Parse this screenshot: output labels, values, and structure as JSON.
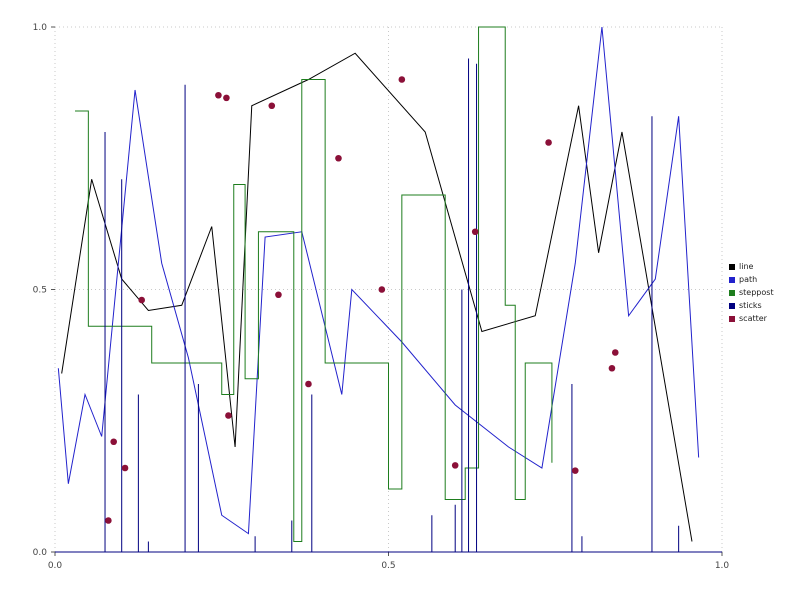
{
  "chart_data": {
    "type": "mixed",
    "title": "",
    "xlabel": "",
    "ylabel": "",
    "xlim": [
      0,
      1
    ],
    "ylim": [
      0,
      1
    ],
    "xticks": {
      "values": [
        0,
        0.5,
        1
      ],
      "labels": [
        "0.0",
        "0.5",
        "1.0"
      ]
    },
    "yticks": {
      "values": [
        0,
        0.5,
        1
      ],
      "labels": [
        "0.0",
        "0.5",
        "1.0"
      ]
    },
    "grid": {
      "on": true,
      "style": "dotted",
      "color": "#c9c9c9"
    },
    "series": [
      {
        "name": "line",
        "type": "line",
        "color": "#000000",
        "points": [
          [
            0.01,
            0.34
          ],
          [
            0.055,
            0.71
          ],
          [
            0.1,
            0.52
          ],
          [
            0.14,
            0.46
          ],
          [
            0.19,
            0.47
          ],
          [
            0.235,
            0.62
          ],
          [
            0.27,
            0.2
          ],
          [
            0.295,
            0.85
          ],
          [
            0.38,
            0.9
          ],
          [
            0.45,
            0.95
          ],
          [
            0.555,
            0.8
          ],
          [
            0.64,
            0.42
          ],
          [
            0.72,
            0.45
          ],
          [
            0.785,
            0.85
          ],
          [
            0.815,
            0.57
          ],
          [
            0.85,
            0.8
          ],
          [
            0.955,
            0.02
          ]
        ]
      },
      {
        "name": "path",
        "type": "line",
        "color": "#2222cc",
        "points": [
          [
            0.005,
            0.35
          ],
          [
            0.02,
            0.13
          ],
          [
            0.045,
            0.3
          ],
          [
            0.07,
            0.22
          ],
          [
            0.12,
            0.88
          ],
          [
            0.16,
            0.55
          ],
          [
            0.2,
            0.37
          ],
          [
            0.25,
            0.07
          ],
          [
            0.29,
            0.035
          ],
          [
            0.315,
            0.6
          ],
          [
            0.37,
            0.61
          ],
          [
            0.43,
            0.3
          ],
          [
            0.445,
            0.5
          ],
          [
            0.52,
            0.4
          ],
          [
            0.6,
            0.28
          ],
          [
            0.68,
            0.2
          ],
          [
            0.73,
            0.16
          ],
          [
            0.78,
            0.55
          ],
          [
            0.82,
            1.0
          ],
          [
            0.86,
            0.45
          ],
          [
            0.9,
            0.52
          ],
          [
            0.935,
            0.83
          ],
          [
            0.965,
            0.18
          ]
        ]
      },
      {
        "name": "steppost",
        "type": "step-post",
        "color": "#1e7d1e",
        "points": [
          [
            0.03,
            0.84
          ],
          [
            0.05,
            0.43
          ],
          [
            0.145,
            0.36
          ],
          [
            0.25,
            0.3
          ],
          [
            0.268,
            0.7
          ],
          [
            0.285,
            0.33
          ],
          [
            0.305,
            0.61
          ],
          [
            0.358,
            0.02
          ],
          [
            0.37,
            0.9
          ],
          [
            0.405,
            0.36
          ],
          [
            0.5,
            0.12
          ],
          [
            0.52,
            0.68
          ],
          [
            0.585,
            0.1
          ],
          [
            0.615,
            0.16
          ],
          [
            0.635,
            1.0
          ],
          [
            0.675,
            0.47
          ],
          [
            0.69,
            0.1
          ],
          [
            0.705,
            0.36
          ],
          [
            0.745,
            0.17
          ]
        ]
      },
      {
        "name": "sticks",
        "type": "stem",
        "color": "#000080",
        "baseline": 0,
        "points": [
          [
            0.075,
            0.8
          ],
          [
            0.1,
            0.71
          ],
          [
            0.125,
            0.3
          ],
          [
            0.14,
            0.02
          ],
          [
            0.195,
            0.89
          ],
          [
            0.215,
            0.32
          ],
          [
            0.3,
            0.03
          ],
          [
            0.355,
            0.06
          ],
          [
            0.385,
            0.3
          ],
          [
            0.565,
            0.07
          ],
          [
            0.6,
            0.09
          ],
          [
            0.61,
            0.5
          ],
          [
            0.62,
            0.94
          ],
          [
            0.632,
            0.93
          ],
          [
            0.775,
            0.32
          ],
          [
            0.79,
            0.03
          ],
          [
            0.895,
            0.83
          ],
          [
            0.935,
            0.05
          ]
        ]
      },
      {
        "name": "scatter",
        "type": "scatter",
        "color": "#8b1038",
        "marker": "circle",
        "size": 3.3,
        "points": [
          [
            0.08,
            0.06
          ],
          [
            0.088,
            0.21
          ],
          [
            0.105,
            0.16
          ],
          [
            0.13,
            0.48
          ],
          [
            0.245,
            0.87
          ],
          [
            0.257,
            0.865
          ],
          [
            0.26,
            0.26
          ],
          [
            0.325,
            0.85
          ],
          [
            0.335,
            0.49
          ],
          [
            0.38,
            0.32
          ],
          [
            0.425,
            0.75
          ],
          [
            0.49,
            0.5
          ],
          [
            0.52,
            0.9
          ],
          [
            0.6,
            0.165
          ],
          [
            0.63,
            0.61
          ],
          [
            0.74,
            0.78
          ],
          [
            0.78,
            0.155
          ],
          [
            0.835,
            0.35
          ],
          [
            0.84,
            0.38
          ]
        ]
      }
    ],
    "legend": {
      "position": "right",
      "entries": [
        {
          "label": "line",
          "color": "#000000"
        },
        {
          "label": "path",
          "color": "#2222cc"
        },
        {
          "label": "steppost",
          "color": "#1e7d1e"
        },
        {
          "label": "sticks",
          "color": "#000080"
        },
        {
          "label": "scatter",
          "color": "#8b1038"
        }
      ]
    }
  }
}
